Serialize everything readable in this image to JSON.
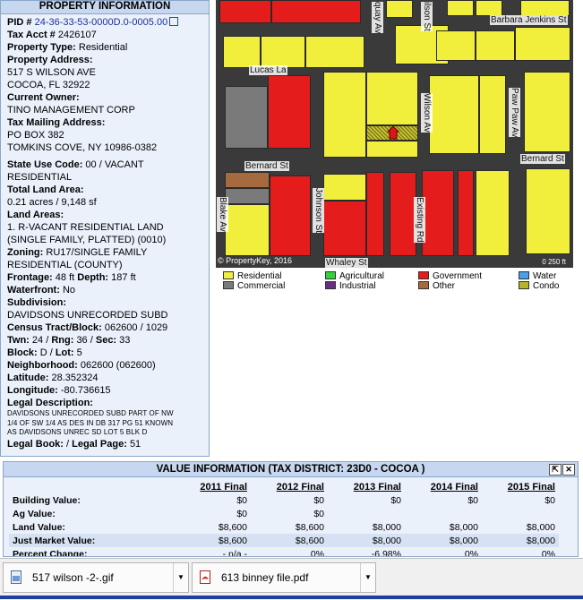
{
  "property_panel": {
    "title": "PROPERTY INFORMATION",
    "pid_label": "PID #",
    "pid_value": "24-36-33-53-0000D.0-0005.00",
    "tax_acct_label": "Tax Acct #",
    "tax_acct_value": "2426107",
    "property_type_label": "Property Type:",
    "property_type_value": "Residential",
    "property_address_label": "Property Address:",
    "address_line1": "517 S WILSON AVE",
    "address_line2": "COCOA, FL 32922",
    "owner_label": "Current Owner:",
    "owner_value": "TINO MANAGEMENT CORP",
    "mailing_label": "Tax Mailing Address:",
    "mailing_line1": "PO BOX 382",
    "mailing_line2": "TOMKINS COVE, NY 10986-0382",
    "use_code_label": "State Use Code:",
    "use_code_value1": "00 / VACANT",
    "use_code_value2": "RESIDENTIAL",
    "land_area_label": "Total Land Area:",
    "land_area_value": "0.21 acres / 9,148 sf",
    "land_areas_label": "Land Areas:",
    "land_areas_line1": "1. R-VACANT RESIDENTIAL LAND",
    "land_areas_line2": "(SINGLE FAMILY, PLATTED) (0010)",
    "zoning_label": "Zoning:",
    "zoning_value1": "RU17/SINGLE FAMILY",
    "zoning_value2": "RESIDENTIAL (COUNTY)",
    "frontage_label": "Frontage:",
    "frontage_value": "48 ft",
    "depth_label": "Depth:",
    "depth_value": "187 ft",
    "waterfront_label": "Waterfront:",
    "waterfront_value": "No",
    "subdivision_label": "Subdivision:",
    "subdivision_value": "DAVIDSONS UNRECORDED SUBD",
    "census_label": "Census Tract/Block:",
    "census_value": "062600 / 1029",
    "twn_label": "Twn:",
    "twn_value": "24",
    "rng_label": "Rng:",
    "rng_value": "36",
    "sec_label": "Sec:",
    "sec_value": "33",
    "block_label": "Block:",
    "block_value": "D",
    "lot_label": "Lot:",
    "lot_value": "5",
    "neighborhood_label": "Neighborhood:",
    "neighborhood_value": "062600 (062600)",
    "latitude_label": "Latitude:",
    "latitude_value": "28.352324",
    "longitude_label": "Longitude:",
    "longitude_value": "-80.736615",
    "legal_desc_label": "Legal Description:",
    "legal_desc_line1": "DAVIDSONS UNRECORDED SUBD PART OF NW",
    "legal_desc_line2": "1/4 OF SW 1/4 AS DES IN DB 317 PG 51 KNOWN",
    "legal_desc_line3": "AS DAVIDSONS UNREC SD LOT 5 BLK D",
    "legal_book_label": "Legal Book:",
    "legal_page_label": "Legal Page:",
    "legal_page_value": "51"
  },
  "map": {
    "streets": {
      "quay": "quay Av",
      "wilson_top": "ilson St",
      "barbara": "Barbara Jenkins St",
      "lucas": "Lucas La",
      "wilson_av": "Wilson Av",
      "paw_paw": "Paw Paw Av",
      "bernard_left": "Bernard St",
      "bernard_right": "Bernard St",
      "blake": "Blake Av",
      "johnson": "Johnson St",
      "existing": "Existing Rd",
      "whaley": "Whaley St"
    },
    "copyright": "© PropertyKey, 2016",
    "scale_text": "0   250 ft"
  },
  "legend": {
    "items": [
      {
        "label": "Residential",
        "color": "#f2ef3c"
      },
      {
        "label": "Agricultural",
        "color": "#2fd43a"
      },
      {
        "label": "Government",
        "color": "#e51c1c"
      },
      {
        "label": "Water",
        "color": "#4aa0e8"
      },
      {
        "label": "Commercial",
        "color": "#7a7a7a"
      },
      {
        "label": "Industrial",
        "color": "#6b2d7d"
      },
      {
        "label": "Other",
        "color": "#a56b3e"
      },
      {
        "label": "Condo",
        "color": "#b9b22a"
      }
    ]
  },
  "value_panel": {
    "title": "VALUE INFORMATION",
    "district": "(TAX DISTRICT: 23D0 - COCOA )",
    "up_icon": "⇱",
    "close_icon": "✕",
    "columns": [
      "2011 Final",
      "2012 Final",
      "2013 Final",
      "2014 Final",
      "2015 Final"
    ],
    "rows": [
      {
        "label": "Building Value:",
        "values": [
          "$0",
          "$0",
          "$0",
          "$0",
          "$0"
        ]
      },
      {
        "label": "Ag Value:",
        "values": [
          "$0",
          "$0",
          "",
          "",
          ""
        ]
      },
      {
        "label": "Land Value:",
        "values": [
          "$8,600",
          "$8,600",
          "$8,000",
          "$8,000",
          "$8,000"
        ]
      },
      {
        "label": "Just Market Value:",
        "values": [
          "$8,600",
          "$8,600",
          "$8,000",
          "$8,000",
          "$8,000"
        ]
      },
      {
        "label": "Percent Change:",
        "values": [
          "- n/a -",
          "0%",
          "-6.98%",
          "0%",
          "0%"
        ]
      }
    ]
  },
  "downloads": {
    "items": [
      {
        "name": "517 wilson -2-.gif"
      },
      {
        "name": "613 binney file.pdf"
      }
    ]
  }
}
